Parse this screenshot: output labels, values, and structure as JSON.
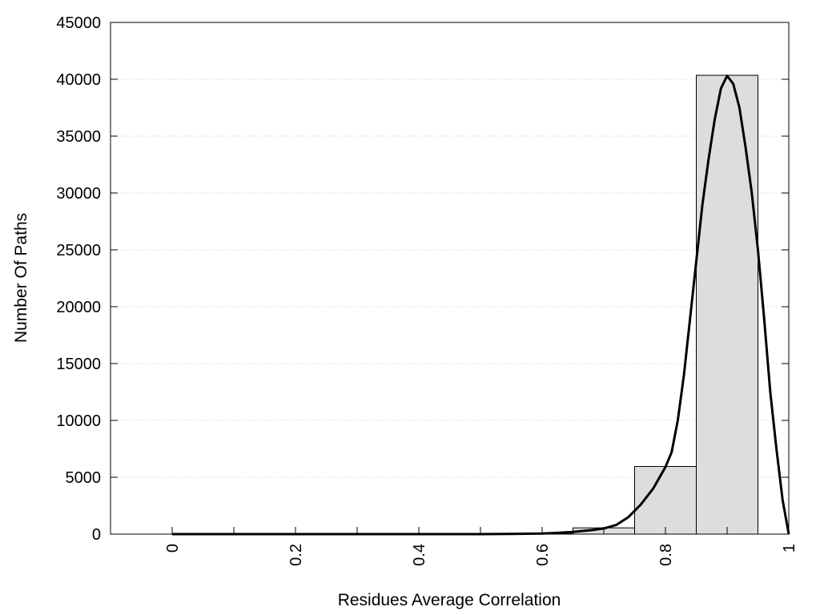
{
  "chart_data": {
    "type": "bar",
    "title": "",
    "xlabel": "Residues Average Correlation",
    "ylabel": "Number Of Paths",
    "xlim": [
      -0.1,
      1.0
    ],
    "ylim": [
      0,
      45000
    ],
    "grid": {
      "y": true,
      "x": false,
      "style": "dotted"
    },
    "x_ticks": [
      0,
      0.2,
      0.4,
      0.6,
      0.8,
      1
    ],
    "x_tick_labels": [
      "0",
      "0.2",
      "0.4",
      "0.6",
      "0.8",
      "1"
    ],
    "x_minor_ticks": [
      0.1,
      0.3,
      0.5,
      0.7,
      0.9
    ],
    "y_ticks": [
      0,
      5000,
      10000,
      15000,
      20000,
      25000,
      30000,
      35000,
      40000,
      45000
    ],
    "y_tick_labels": [
      "0",
      "5000",
      "10000",
      "15000",
      "20000",
      "25000",
      "30000",
      "35000",
      "40000",
      "45000"
    ],
    "bars": [
      {
        "x_start": 0.0,
        "x_end": 0.05,
        "value": 10
      },
      {
        "x_start": 0.05,
        "x_end": 0.15,
        "value": 0
      },
      {
        "x_start": 0.15,
        "x_end": 0.25,
        "value": 0
      },
      {
        "x_start": 0.25,
        "x_end": 0.35,
        "value": 0
      },
      {
        "x_start": 0.35,
        "x_end": 0.45,
        "value": 0
      },
      {
        "x_start": 0.45,
        "x_end": 0.55,
        "value": 0
      },
      {
        "x_start": 0.55,
        "x_end": 0.65,
        "value": 30
      },
      {
        "x_start": 0.65,
        "x_end": 0.75,
        "value": 550
      },
      {
        "x_start": 0.75,
        "x_end": 0.85,
        "value": 5950
      },
      {
        "x_start": 0.85,
        "x_end": 0.95,
        "value": 40350
      }
    ],
    "curve": {
      "x": [
        0.0,
        0.1,
        0.2,
        0.3,
        0.4,
        0.5,
        0.55,
        0.6,
        0.62,
        0.65,
        0.68,
        0.7,
        0.72,
        0.74,
        0.76,
        0.78,
        0.8,
        0.81,
        0.82,
        0.83,
        0.84,
        0.85,
        0.86,
        0.87,
        0.88,
        0.89,
        0.9,
        0.91,
        0.92,
        0.93,
        0.94,
        0.95,
        0.96,
        0.97,
        0.98,
        0.99,
        1.0
      ],
      "y": [
        0,
        0,
        0,
        0,
        0,
        0,
        20,
        50,
        100,
        200,
        350,
        500,
        800,
        1500,
        2600,
        4000,
        5900,
        7200,
        10000,
        14000,
        19000,
        24000,
        29000,
        33000,
        36500,
        39200,
        40300,
        39600,
        37500,
        34000,
        30000,
        25000,
        19000,
        12500,
        7500,
        3000,
        0
      ]
    },
    "colors": {
      "bar_fill": "#dddddd",
      "bar_stroke": "#000000",
      "curve": "#000000",
      "grid": "#c0c0c0"
    }
  }
}
